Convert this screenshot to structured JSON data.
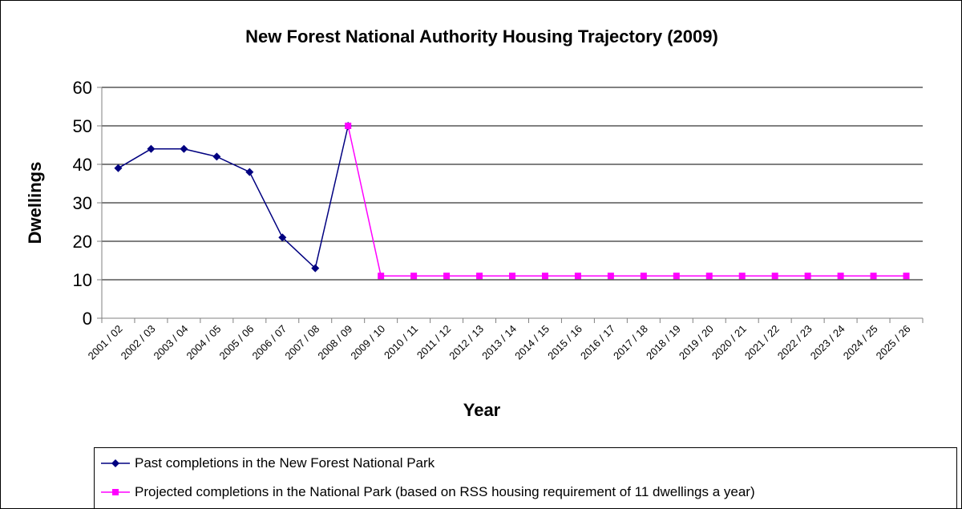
{
  "chart_data": {
    "type": "line",
    "title": "New Forest National Authority Housing Trajectory (2009)",
    "xlabel": "Year",
    "ylabel": "Dwellings",
    "ylim": [
      0,
      60
    ],
    "yticks": [
      0,
      10,
      20,
      30,
      40,
      50,
      60
    ],
    "grid": true,
    "legend_position": "bottom",
    "categories": [
      "2001 / 02",
      "2002 / 03",
      "2003 / 04",
      "2004 / 05",
      "2005 / 06",
      "2006 / 07",
      "2007 / 08",
      "2008 / 09",
      "2009 / 10",
      "2010 / 11",
      "2011 / 12",
      "2012 / 13",
      "2013 / 14",
      "2014 / 15",
      "2015 / 16",
      "2016 / 17",
      "2017 / 18",
      "2018 / 19",
      "2019 / 20",
      "2020 / 21",
      "2021 / 22",
      "2022 / 23",
      "2023 / 24",
      "2024 / 25",
      "2025 / 26"
    ],
    "series": [
      {
        "name": "Past completions in the New Forest National Park",
        "color": "#000080",
        "marker": "diamond",
        "values": [
          39,
          44,
          44,
          42,
          38,
          21,
          13,
          50,
          null,
          null,
          null,
          null,
          null,
          null,
          null,
          null,
          null,
          null,
          null,
          null,
          null,
          null,
          null,
          null,
          null
        ]
      },
      {
        "name": "Projected completions in the National Park (based on RSS housing requirement of 11 dwellings a year)",
        "color": "#ff00ff",
        "marker": "square",
        "values": [
          null,
          null,
          null,
          null,
          null,
          null,
          null,
          50,
          11,
          11,
          11,
          11,
          11,
          11,
          11,
          11,
          11,
          11,
          11,
          11,
          11,
          11,
          11,
          11,
          11
        ]
      }
    ]
  }
}
